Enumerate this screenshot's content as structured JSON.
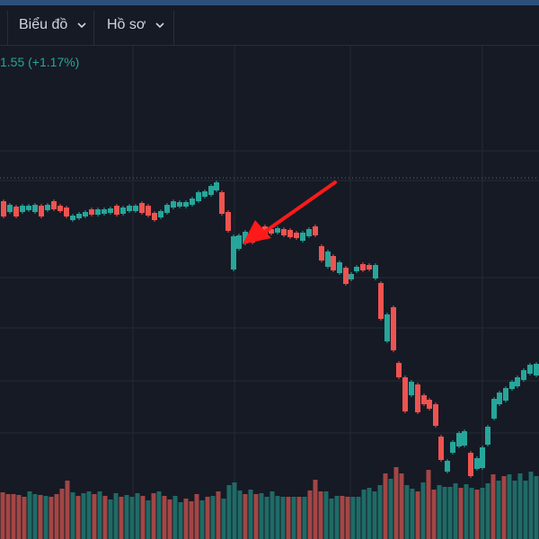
{
  "toolbar": {
    "items": [
      {
        "label": "Biểu đồ",
        "icon": "chevron-down-icon"
      },
      {
        "label": "Hồ sơ",
        "icon": "chevron-down-icon"
      }
    ]
  },
  "header": {
    "price_change": "1.55 (+1.17%)"
  },
  "colors": {
    "background": "#161a25",
    "up": "#26a69a",
    "down": "#ef5350",
    "annotation": "#ff1a1a",
    "grid": "#242936"
  }
}
